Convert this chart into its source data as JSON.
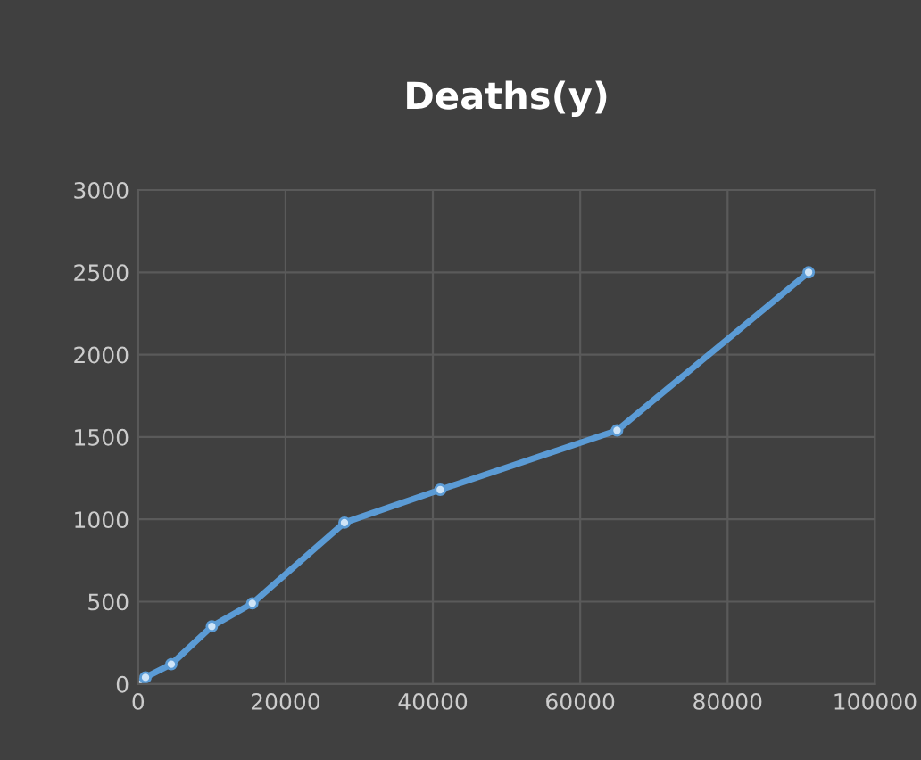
{
  "chart_data": {
    "type": "line",
    "title": "Deaths(y)",
    "x": [
      0,
      1000,
      4500,
      10000,
      15500,
      28000,
      41000,
      65000,
      91000
    ],
    "series": [
      {
        "color": "#5b9bd5",
        "values": [
          0,
          40,
          120,
          350,
          490,
          980,
          1180,
          1540,
          2500
        ]
      }
    ],
    "xlim": [
      0,
      100000
    ],
    "xticks": [
      0,
      20000,
      40000,
      60000,
      80000,
      100000
    ],
    "ylim": [
      0,
      3000
    ],
    "yticks": [
      0,
      500,
      1000,
      1500,
      2000,
      2500,
      3000
    ],
    "grid": true,
    "marker": "circle",
    "line_style": "solid"
  }
}
